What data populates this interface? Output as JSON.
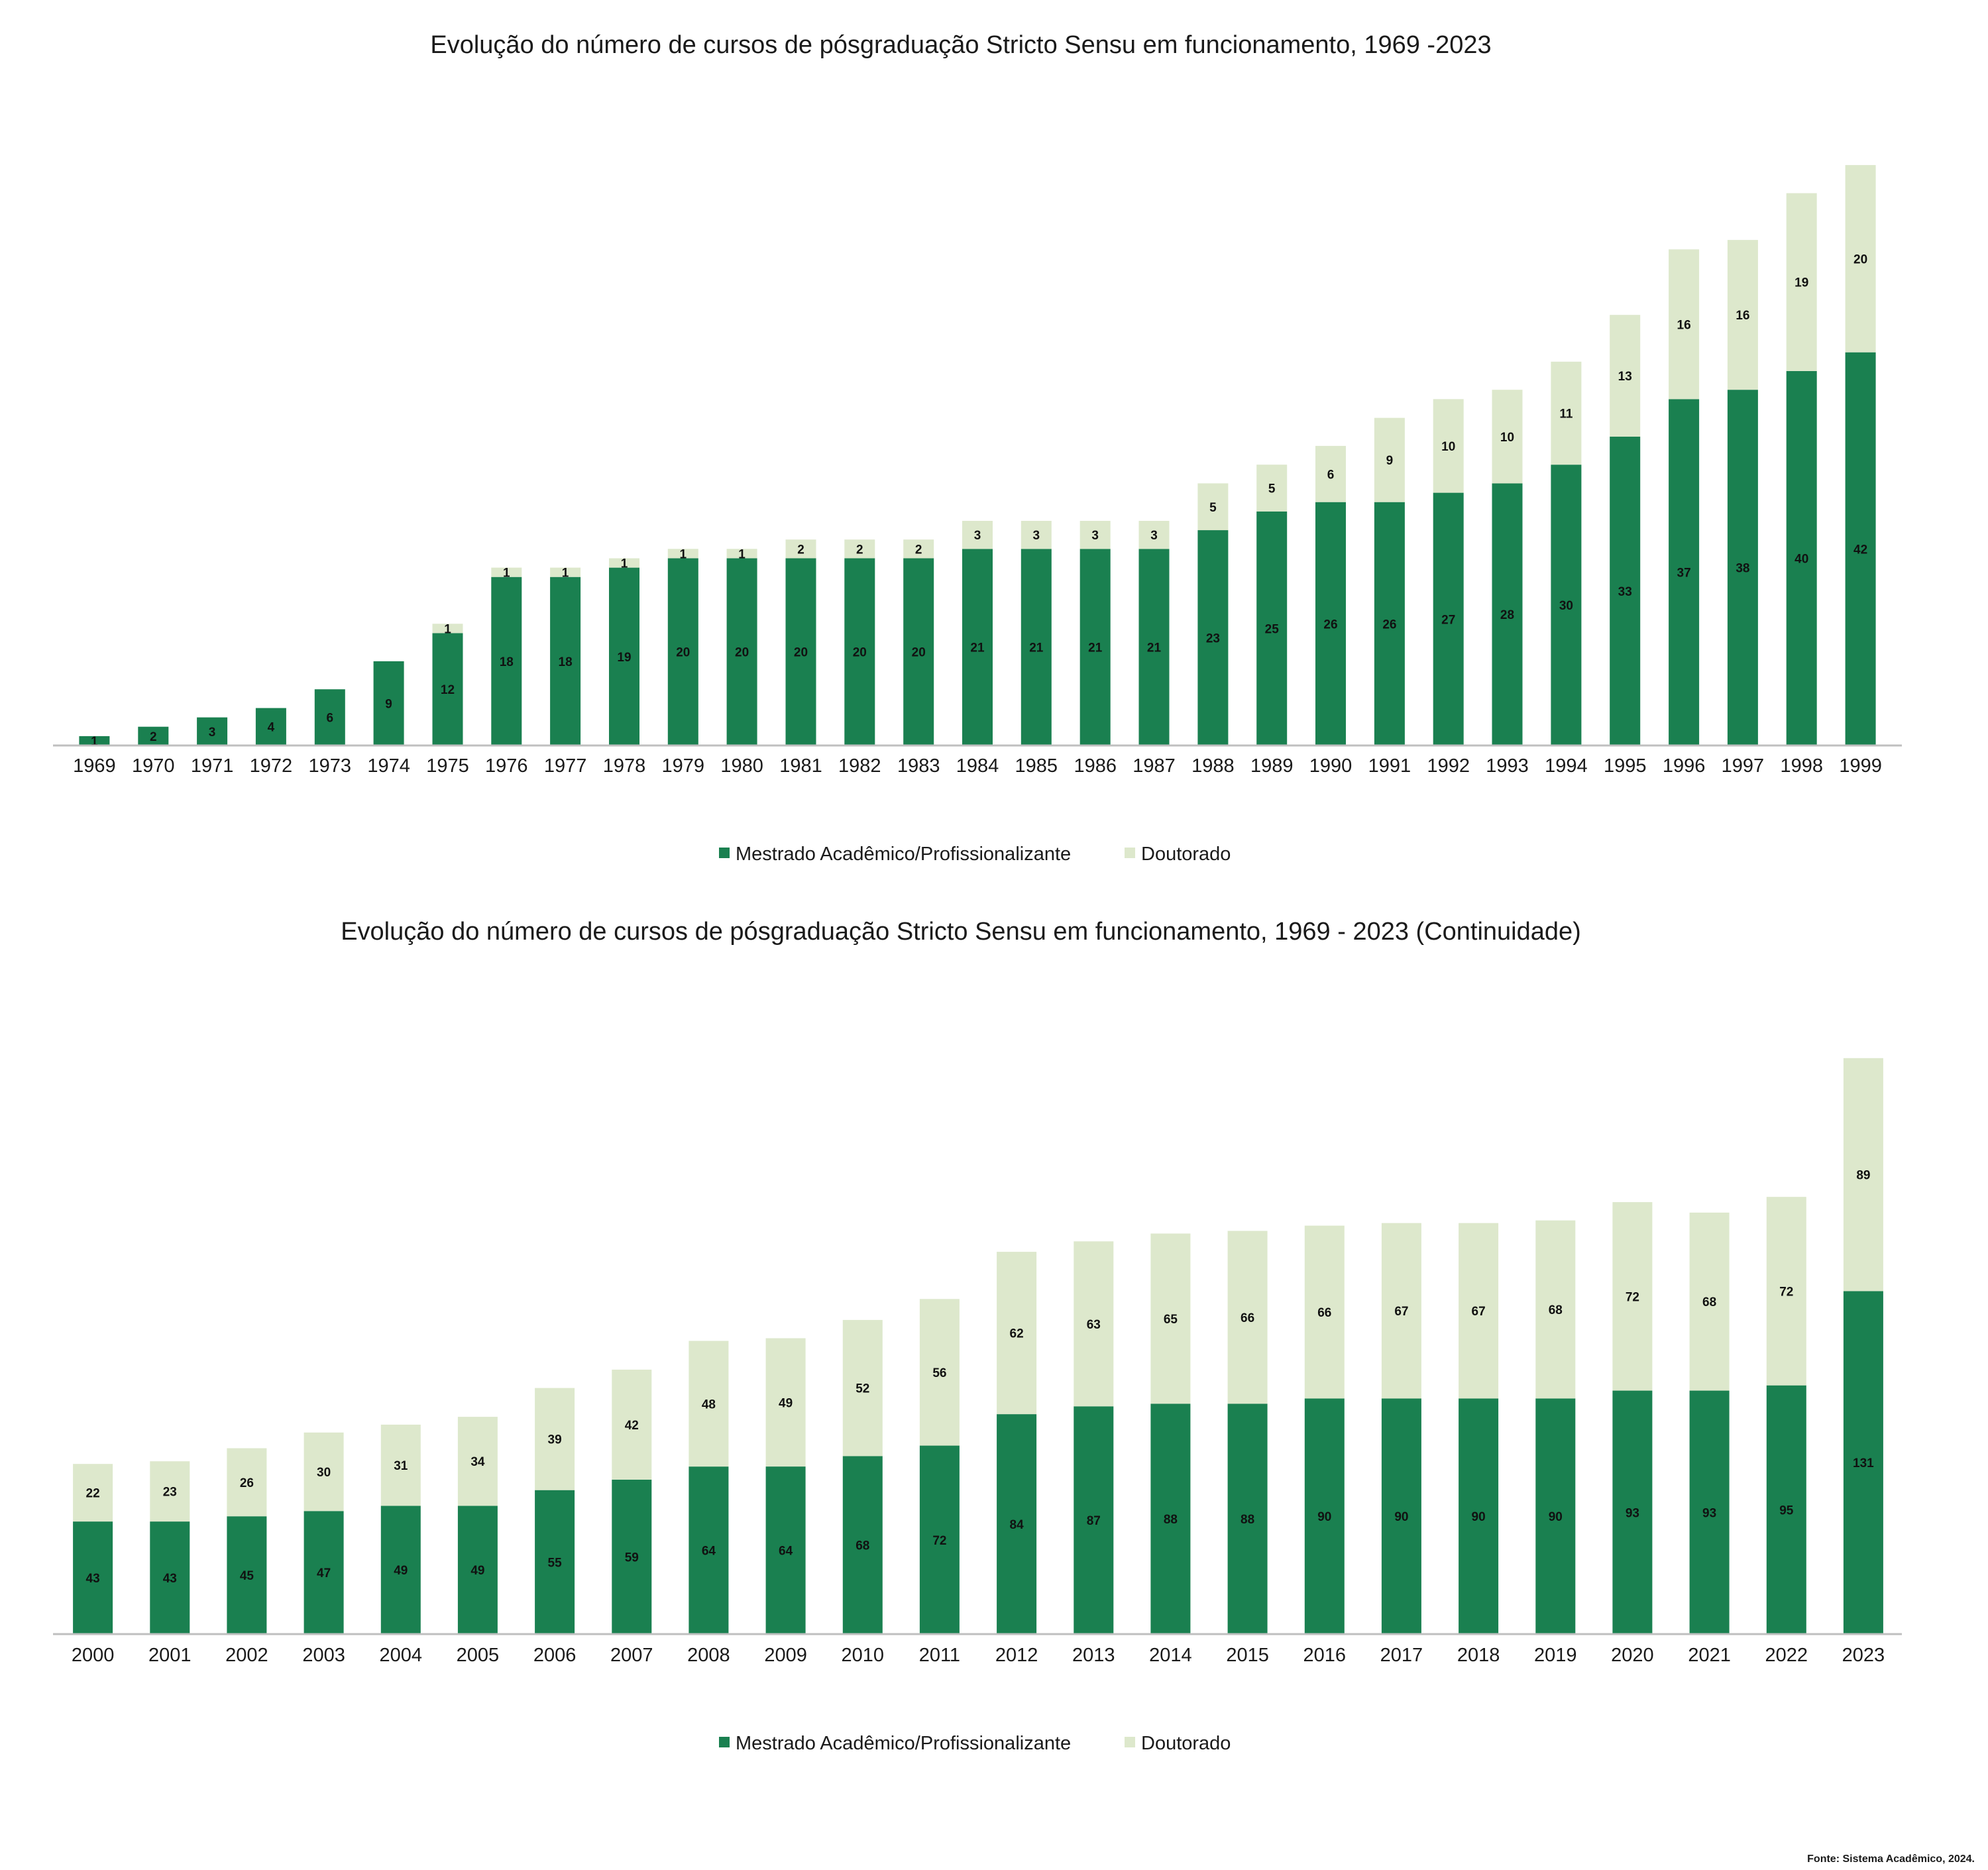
{
  "colors": {
    "mestrado": "#1a8050",
    "doutorado": "#dde8cc"
  },
  "source": "Fonte: Sistema Acadêmico, 2024.",
  "chart_data": [
    {
      "type": "bar",
      "stacked": true,
      "title": "Evolução do número de cursos de pósgraduação Stricto Sensu em funcionamento, 1969 -2023",
      "categories": [
        "1969",
        "1970",
        "1971",
        "1972",
        "1973",
        "1974",
        "1975",
        "1976",
        "1977",
        "1978",
        "1979",
        "1980",
        "1981",
        "1982",
        "1983",
        "1984",
        "1985",
        "1986",
        "1987",
        "1988",
        "1989",
        "1990",
        "1991",
        "1992",
        "1993",
        "1994",
        "1995",
        "1996",
        "1997",
        "1998",
        "1999"
      ],
      "series": [
        {
          "name": "Mestrado Acadêmico/Profissionalizante",
          "values": [
            1,
            2,
            3,
            4,
            6,
            9,
            12,
            18,
            18,
            19,
            20,
            20,
            20,
            20,
            20,
            21,
            21,
            21,
            21,
            23,
            25,
            26,
            26,
            27,
            28,
            30,
            33,
            37,
            38,
            40,
            42
          ]
        },
        {
          "name": "Doutorado",
          "values": [
            0,
            0,
            0,
            0,
            0,
            0,
            1,
            1,
            1,
            1,
            1,
            1,
            2,
            2,
            2,
            3,
            3,
            3,
            3,
            5,
            5,
            6,
            9,
            10,
            10,
            11,
            13,
            16,
            16,
            19,
            20
          ]
        }
      ],
      "ylim": [
        0,
        63
      ],
      "legend": "bottom-center",
      "grid": false
    },
    {
      "type": "bar",
      "stacked": true,
      "title": "Evolução do número de cursos de pósgraduação Stricto Sensu em funcionamento, 1969 - 2023 (Continuidade)",
      "categories": [
        "2000",
        "2001",
        "2002",
        "2003",
        "2004",
        "2005",
        "2006",
        "2007",
        "2008",
        "2009",
        "2010",
        "2011",
        "2012",
        "2013",
        "2014",
        "2015",
        "2016",
        "2017",
        "2018",
        "2019",
        "2020",
        "2021",
        "2022",
        "2023"
      ],
      "series": [
        {
          "name": "Mestrado Acadêmico/Profissionalizante",
          "values": [
            43,
            43,
            45,
            47,
            49,
            49,
            55,
            59,
            64,
            64,
            68,
            72,
            84,
            87,
            88,
            88,
            90,
            90,
            90,
            90,
            93,
            93,
            95,
            131
          ]
        },
        {
          "name": "Doutorado",
          "values": [
            22,
            23,
            26,
            30,
            31,
            34,
            39,
            42,
            48,
            49,
            52,
            56,
            62,
            63,
            65,
            66,
            66,
            67,
            67,
            68,
            72,
            68,
            72,
            89
          ]
        }
      ],
      "ylim": [
        0,
        225
      ],
      "legend": "bottom-center",
      "grid": false
    }
  ]
}
